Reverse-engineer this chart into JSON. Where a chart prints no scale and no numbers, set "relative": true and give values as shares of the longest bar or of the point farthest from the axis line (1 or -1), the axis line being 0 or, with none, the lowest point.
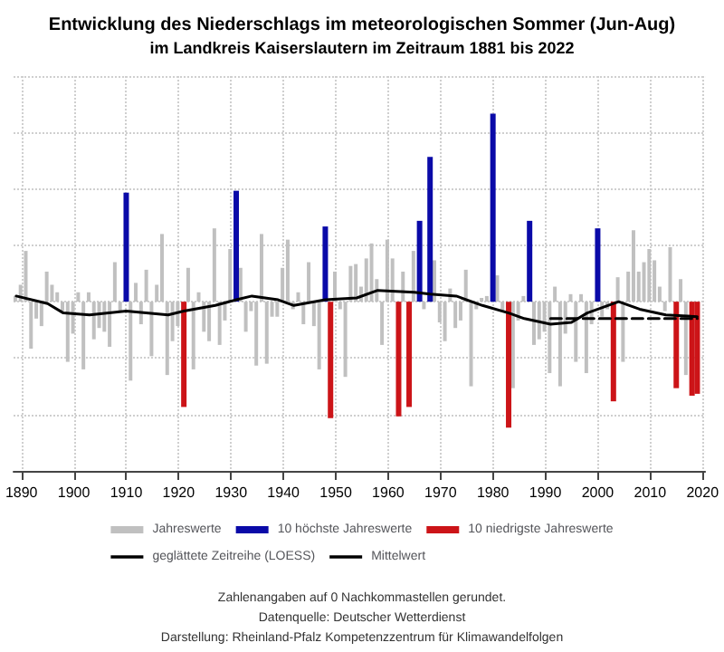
{
  "chart_data": {
    "type": "bar",
    "title": "Entwicklung des Niederschlags im meteorologischen Sommer (Jun-Aug)",
    "subtitle": "im Landkreis Kaiserslautern im Zeitraum 1881 bis 2022",
    "relative": true,
    "xlim": [
      1888.5,
      2020.5
    ],
    "xticks": [
      1890,
      1900,
      1910,
      1920,
      1930,
      1940,
      1950,
      1960,
      1970,
      1980,
      1990,
      2000,
      2010,
      2020
    ],
    "grid": true,
    "legend": "bottom",
    "annotations": [
      "Zahlenangaben auf 0 Nachkommastellen gerundet.",
      "Datenquelle: Deutscher Wetterdienst",
      "Darstellung: Rheinland-Pfalz Kompetenzzentrum für Klimawandelfolgen"
    ],
    "series": [
      {
        "name": "Jahreswerte",
        "color": "#c0c0c0",
        "x": [
          1889,
          1890,
          1891,
          1892,
          1893,
          1894,
          1895,
          1896,
          1897,
          1898,
          1899,
          1900,
          1901,
          1902,
          1903,
          1904,
          1905,
          1906,
          1907,
          1908,
          1909,
          1911,
          1912,
          1913,
          1914,
          1915,
          1916,
          1917,
          1918,
          1919,
          1920,
          1922,
          1923,
          1924,
          1925,
          1926,
          1927,
          1928,
          1929,
          1930,
          1932,
          1933,
          1934,
          1935,
          1936,
          1937,
          1938,
          1939,
          1940,
          1941,
          1942,
          1943,
          1944,
          1945,
          1946,
          1947,
          1950,
          1951,
          1952,
          1953,
          1954,
          1955,
          1956,
          1957,
          1958,
          1959,
          1960,
          1961,
          1963,
          1965,
          1967,
          1969,
          1970,
          1971,
          1972,
          1973,
          1974,
          1975,
          1976,
          1977,
          1978,
          1979,
          1981,
          1982,
          1984,
          1985,
          1986,
          1988,
          1989,
          1990,
          1991,
          1992,
          1993,
          1994,
          1995,
          1996,
          1997,
          1998,
          1999,
          2001,
          2002,
          2004,
          2005,
          2006,
          2007,
          2008,
          2009,
          2010,
          2011,
          2012,
          2013,
          2014,
          2016,
          2017
        ],
        "values": [
          0.03,
          0.09,
          0.27,
          -0.25,
          -0.09,
          -0.13,
          0.16,
          0.09,
          0.05,
          -0.05,
          -0.32,
          -0.17,
          0.05,
          -0.36,
          0.05,
          -0.2,
          -0.14,
          -0.16,
          -0.24,
          0.21,
          -0.05,
          -0.42,
          0.1,
          -0.12,
          0.17,
          -0.29,
          0.09,
          0.36,
          -0.39,
          -0.21,
          -0.13,
          0.18,
          -0.36,
          0.05,
          -0.16,
          -0.21,
          0.39,
          -0.23,
          -0.1,
          0.28,
          0.18,
          -0.16,
          -0.05,
          -0.34,
          0.36,
          -0.33,
          -0.08,
          -0.08,
          0.18,
          0.33,
          -0.04,
          0.05,
          -0.12,
          0.21,
          -0.13,
          -0.36,
          0.16,
          -0.04,
          -0.4,
          0.19,
          0.2,
          0.08,
          0.23,
          0.31,
          0.12,
          -0.23,
          0.33,
          0.23,
          0.16,
          0.27,
          -0.04,
          0.22,
          -0.11,
          -0.21,
          0.07,
          -0.14,
          -0.1,
          0.17,
          -0.45,
          -0.04,
          0.02,
          0.03,
          0.14,
          -0.05,
          -0.46,
          -0.1,
          0.03,
          -0.23,
          -0.2,
          -0.16,
          -0.38,
          0.08,
          -0.45,
          -0.17,
          0.04,
          -0.32,
          0.04,
          -0.38,
          -0.12,
          -0.08,
          -0.04,
          0.13,
          -0.32,
          0.16,
          0.38,
          0.16,
          0.21,
          0.28,
          0.22,
          0.08,
          -0.05,
          0.29,
          0.12,
          -0.39
        ]
      },
      {
        "name": "10 höchste Jahreswerte",
        "color": "#0a0aa8",
        "x": [
          1910,
          1931,
          1948,
          1966,
          1968,
          1980,
          1987,
          2000
        ],
        "values": [
          0.58,
          0.59,
          0.4,
          0.43,
          0.77,
          1,
          0.43,
          0.39
        ]
      },
      {
        "name": "10 niedrigste Jahreswerte",
        "color": "#cc1418",
        "x": [
          1921,
          1949,
          1962,
          1964,
          1983,
          2003,
          2015,
          2018,
          2019
        ],
        "values": [
          -0.56,
          -0.62,
          -0.61,
          -0.56,
          -0.67,
          -0.53,
          -0.46,
          -0.5,
          -0.49
        ]
      },
      {
        "name": "geglättete Zeitreihe (LOESS)",
        "type": "line",
        "color": "#000000",
        "line_style": "solid",
        "x": [
          1889,
          1895,
          1898,
          1903,
          1910,
          1918,
          1921,
          1927,
          1931,
          1934,
          1939,
          1942,
          1948,
          1954,
          1958,
          1965,
          1968,
          1973,
          1978,
          1983,
          1986,
          1991,
          1995,
          1998,
          2004,
          2008,
          2013,
          2019
        ],
        "values": [
          0.03,
          -0.01,
          -0.06,
          -0.07,
          -0.05,
          -0.07,
          -0.05,
          -0.02,
          0.01,
          0.03,
          0.01,
          -0.02,
          0.01,
          0.02,
          0.06,
          0.05,
          0.04,
          0.03,
          -0.02,
          -0.06,
          -0.09,
          -0.12,
          -0.11,
          -0.06,
          0,
          -0.04,
          -0.07,
          -0.08
        ]
      },
      {
        "name": "Mittelwert",
        "type": "line",
        "color": "#000000",
        "line_style": "dashed",
        "x": [
          1991,
          2019
        ],
        "values": [
          -0.09,
          -0.09
        ]
      }
    ]
  }
}
